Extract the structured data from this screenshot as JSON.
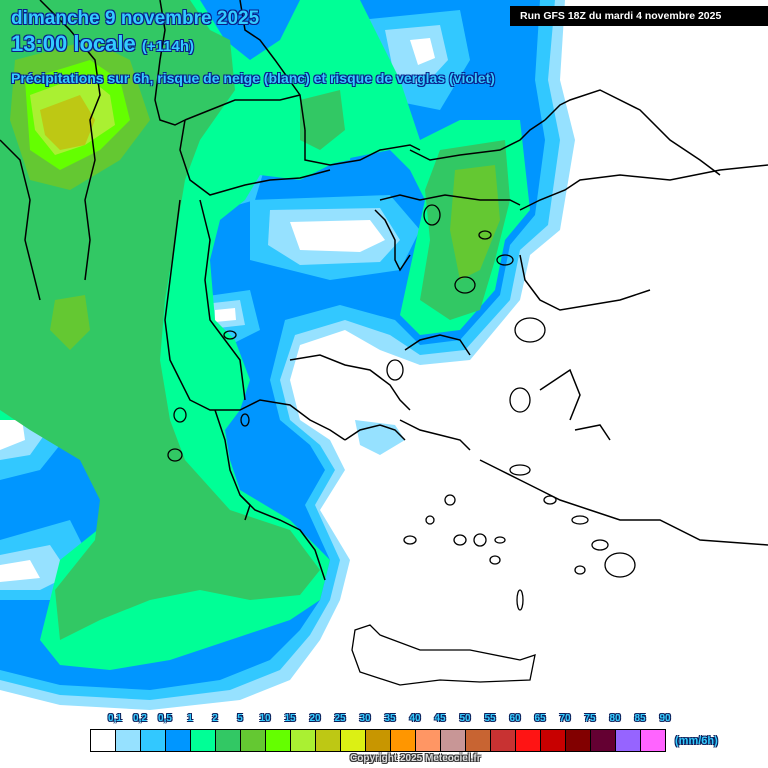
{
  "header": {
    "date": "dimanche 9 novembre 2025",
    "time": "13:00 locale",
    "lead": "(+114h)",
    "description": "Précipitations sur 6h, risque de neige (blanc) et risque de verglas (violet)"
  },
  "run_info": "Run GFS 18Z du mardi 4 novembre 2025",
  "legend": {
    "unit": "(mm/6h)",
    "labels": [
      "0,1",
      "0,2",
      "0,5",
      "1",
      "2",
      "5",
      "10",
      "15",
      "20",
      "25",
      "30",
      "35",
      "40",
      "45",
      "50",
      "55",
      "60",
      "65",
      "70",
      "75",
      "80",
      "85",
      "90"
    ],
    "colors": [
      "#ffffff",
      "#96e1ff",
      "#32c8ff",
      "#0096ff",
      "#00ff96",
      "#32c864",
      "#64c832",
      "#64ff00",
      "#aaf032",
      "#bec814",
      "#dcf014",
      "#c89600",
      "#ff9600",
      "#ff9664",
      "#c89696",
      "#c86432",
      "#c83232",
      "#ff1414",
      "#c80000",
      "#820000",
      "#640032",
      "#9664ff",
      "#ff64ff"
    ]
  },
  "copyright": "Copyright 2025 Meteociel.fr",
  "map": {
    "region": "Balkans / Greece / Aegean",
    "colors": {
      "p01": "#96e1ff",
      "p02": "#32c8ff",
      "p05": "#0096ff",
      "p1": "#00ff96",
      "p2": "#32c864",
      "p5": "#64c832",
      "p10": "#64ff00",
      "p15": "#aaf032",
      "p20": "#bec814",
      "border": "#000000"
    }
  }
}
